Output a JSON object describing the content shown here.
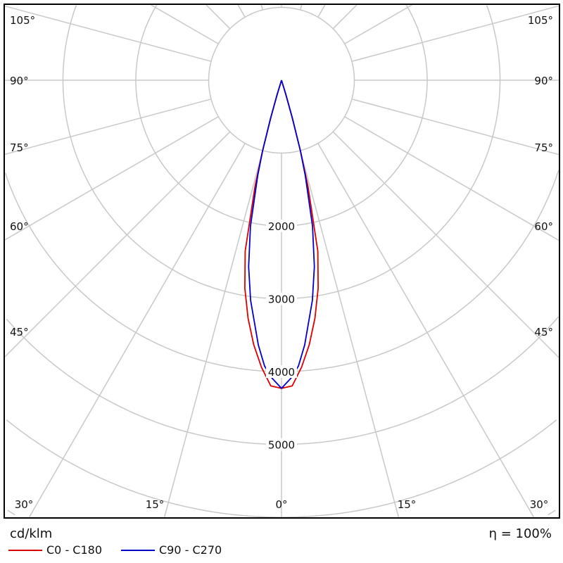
{
  "chart_data": {
    "type": "polar",
    "unit_label": "cd/klm",
    "efficiency_label": "η = 100%",
    "radial_ticks": [
      1000,
      2000,
      3000,
      4000,
      5000,
      6000,
      7000
    ],
    "radial_tick_labels": [
      "2000",
      "3000",
      "4000",
      "5000"
    ],
    "angle_step_deg": 15,
    "angle_labels_side": [
      "105°",
      "90°",
      "75°",
      "60°",
      "45°"
    ],
    "angle_labels_bottom": [
      "30°",
      "15°",
      "0°",
      "15°",
      "30°"
    ],
    "grid": true,
    "series": [
      {
        "name": "C0 - C180",
        "color": "#dd0000",
        "angles": [
          0,
          2,
          4,
          6,
          8,
          10,
          12,
          14,
          15,
          16,
          17,
          18,
          20
        ],
        "values": [
          4230,
          4200,
          3950,
          3650,
          3300,
          2900,
          2400,
          1500,
          1000,
          500,
          150,
          20,
          0
        ]
      },
      {
        "name": "C90 - C270",
        "color": "#0000cc",
        "angles": [
          0,
          2,
          3.4,
          5,
          8,
          10,
          12,
          14,
          15,
          16,
          17,
          18,
          20
        ],
        "values": [
          4230,
          4080,
          3930,
          3650,
          3050,
          2600,
          2050,
          1350,
          1000,
          550,
          200,
          20,
          0
        ]
      }
    ]
  }
}
